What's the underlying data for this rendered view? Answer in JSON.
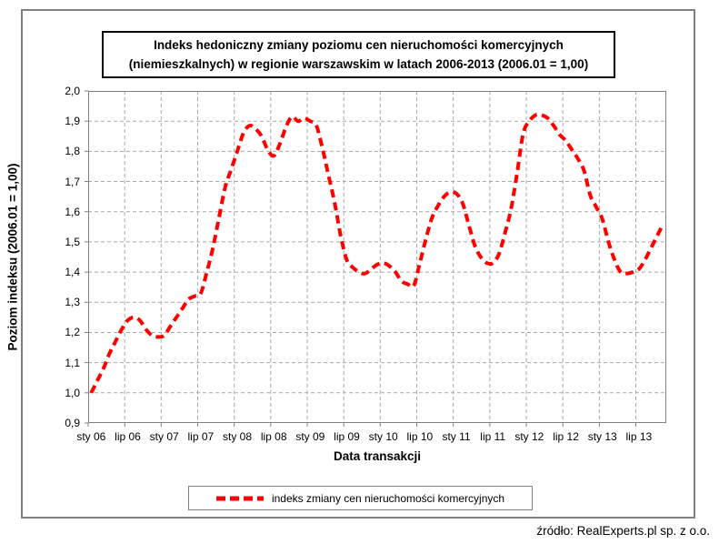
{
  "title": {
    "line1": "Indeks hedoniczny zmiany poziomu cen nieruchomości komercyjnych",
    "line2": "(niemieszkalnych) w regionie warszawskim w latach 2006-2013 (2006.01 = 1,00)"
  },
  "legend": {
    "label": "indeks zmiany cen nieruchomości komercyjnych"
  },
  "source": "źródło: RealExperts.pl sp. z o.o.",
  "colors": {
    "series": "#FF0000",
    "grid": "#A9A9A9",
    "plot_border": "#808080",
    "frame_border": "#808080",
    "text": "#000000"
  },
  "chart_data": {
    "type": "line",
    "title": "Indeks hedoniczny zmiany poziomu cen nieruchomości komercyjnych (niemieszkalnych) w regionie warszawskim w latach 2006-2013 (2006.01 = 1,00)",
    "xlabel": "Data transakcji",
    "ylabel": "Poziom indeksu (2006.01 = 1,00)",
    "ylim": [
      0.9,
      2.0
    ],
    "y_tick_step": 0.1,
    "y_tick_labels": [
      "0,9",
      "1,0",
      "1,1",
      "1,2",
      "1,3",
      "1,4",
      "1,5",
      "1,6",
      "1,7",
      "1,8",
      "1,9",
      "2,0"
    ],
    "x_start": "2006-01",
    "x_end": "2013-11",
    "frequency": "monthly",
    "n_categories": 95,
    "x_tick_interval_months": 6,
    "x_tick_labels": [
      "sty 06",
      "lip 06",
      "sty 07",
      "lip 07",
      "sty 08",
      "lip 08",
      "sty 09",
      "lip 09",
      "sty 10",
      "lip 10",
      "sty 11",
      "lip 11",
      "sty 12",
      "lip 12",
      "sty 13",
      "lip 13"
    ],
    "grid": true,
    "legend_position": "bottom",
    "series": [
      {
        "name": "indeks zmiany cen nieruchomości komercyjnych",
        "color": "#FF0000",
        "style": "dashed",
        "values": [
          1.0,
          1.04,
          1.08,
          1.13,
          1.17,
          1.21,
          1.24,
          1.25,
          1.24,
          1.21,
          1.19,
          1.185,
          1.19,
          1.22,
          1.25,
          1.28,
          1.31,
          1.32,
          1.33,
          1.4,
          1.48,
          1.58,
          1.68,
          1.74,
          1.8,
          1.86,
          1.885,
          1.875,
          1.85,
          1.805,
          1.785,
          1.825,
          1.88,
          1.915,
          1.9,
          1.91,
          1.9,
          1.885,
          1.81,
          1.72,
          1.63,
          1.52,
          1.44,
          1.415,
          1.4,
          1.395,
          1.41,
          1.425,
          1.43,
          1.42,
          1.4,
          1.37,
          1.36,
          1.355,
          1.43,
          1.51,
          1.58,
          1.62,
          1.65,
          1.665,
          1.66,
          1.63,
          1.56,
          1.49,
          1.45,
          1.43,
          1.43,
          1.46,
          1.53,
          1.61,
          1.73,
          1.86,
          1.9,
          1.92,
          1.92,
          1.91,
          1.885,
          1.855,
          1.835,
          1.805,
          1.775,
          1.735,
          1.655,
          1.615,
          1.575,
          1.5,
          1.44,
          1.4,
          1.395,
          1.4,
          1.41,
          1.44,
          1.48,
          1.52,
          1.56
        ]
      }
    ]
  }
}
